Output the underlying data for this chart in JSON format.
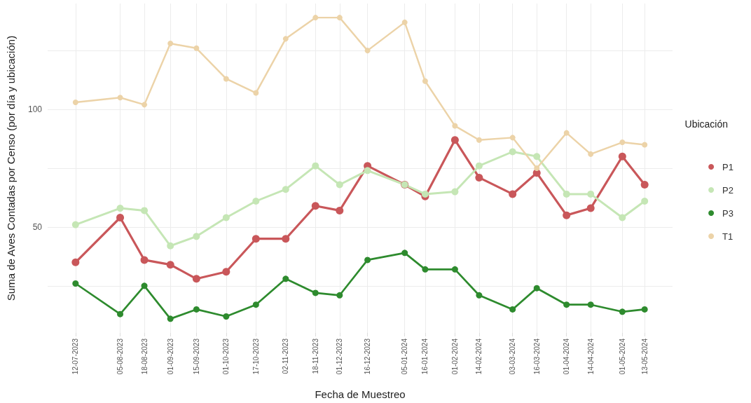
{
  "chart_data": {
    "type": "line",
    "xlabel": "Fecha de Muestreo",
    "ylabel": "Suma de Aves Contadas por Censo (por día y ubicación)",
    "legend_title": "Ubicación",
    "x": [
      "2023-07-12",
      "2023-08-05",
      "2023-08-18",
      "2023-09-01",
      "2023-09-15",
      "2023-10-01",
      "2023-10-17",
      "2023-11-02",
      "2023-11-18",
      "2023-12-01",
      "2023-12-16",
      "2024-01-05",
      "2024-01-16",
      "2024-02-01",
      "2024-02-14",
      "2024-03-03",
      "2024-03-16",
      "2024-04-01",
      "2024-04-14",
      "2024-05-01",
      "2024-05-13"
    ],
    "series": [
      {
        "name": "P1",
        "color": "#c9575a",
        "values": [
          35,
          54,
          36,
          34,
          28,
          31,
          45,
          45,
          59,
          57,
          76,
          68,
          63,
          87,
          71,
          64,
          73,
          55,
          58,
          80,
          68
        ]
      },
      {
        "name": "P2",
        "color": "#c5e6b5",
        "values": [
          51,
          58,
          57,
          42,
          46,
          54,
          61,
          66,
          76,
          68,
          74,
          68,
          64,
          65,
          76,
          82,
          80,
          64,
          64,
          54,
          61
        ]
      },
      {
        "name": "P3",
        "color": "#2e8b2e",
        "values": [
          26,
          13,
          25,
          11,
          15,
          12,
          17,
          28,
          22,
          21,
          36,
          39,
          32,
          32,
          21,
          15,
          24,
          17,
          17,
          14,
          15
        ]
      },
      {
        "name": "T1",
        "color": "#ecd3a8",
        "values": [
          103,
          105,
          102,
          128,
          126,
          113,
          107,
          130,
          139,
          139,
          125,
          137,
          112,
          93,
          87,
          88,
          75,
          90,
          81,
          86,
          85
        ]
      }
    ],
    "xlim": [
      "2023-06-27",
      "2024-05-28"
    ],
    "xticks": [
      {
        "value": "2023-07-12",
        "label": "12-07-2023"
      },
      {
        "value": "2023-08-05",
        "label": "05-08-2023"
      },
      {
        "value": "2023-08-18",
        "label": "18-08-2023"
      },
      {
        "value": "2023-09-01",
        "label": "01-09-2023"
      },
      {
        "value": "2023-09-15",
        "label": "15-09-2023"
      },
      {
        "value": "2023-10-01",
        "label": "01-10-2023"
      },
      {
        "value": "2023-10-17",
        "label": "17-10-2023"
      },
      {
        "value": "2023-11-02",
        "label": "02-11-2023"
      },
      {
        "value": "2023-11-18",
        "label": "18-11-2023"
      },
      {
        "value": "2023-12-01",
        "label": "01-12-2023"
      },
      {
        "value": "2023-12-16",
        "label": "16-12-2023"
      },
      {
        "value": "2024-01-05",
        "label": "05-01-2024"
      },
      {
        "value": "2024-01-16",
        "label": "16-01-2024"
      },
      {
        "value": "2024-02-01",
        "label": "01-02-2024"
      },
      {
        "value": "2024-02-14",
        "label": "14-02-2024"
      },
      {
        "value": "2024-03-03",
        "label": "03-03-2024"
      },
      {
        "value": "2024-03-16",
        "label": "16-03-2024"
      },
      {
        "value": "2024-04-01",
        "label": "01-04-2024"
      },
      {
        "value": "2024-04-14",
        "label": "14-04-2024"
      },
      {
        "value": "2024-05-01",
        "label": "01-05-2024"
      },
      {
        "value": "2024-05-13",
        "label": "13-05-2024"
      }
    ],
    "ylim": [
      5,
      145
    ],
    "yticks": [
      {
        "value": 25,
        "label": null
      },
      50,
      {
        "value": 75,
        "label": null
      },
      100,
      {
        "value": 125,
        "label": null
      }
    ],
    "grid": true,
    "legend": "right",
    "marker": "circle",
    "line_style": "solid"
  }
}
